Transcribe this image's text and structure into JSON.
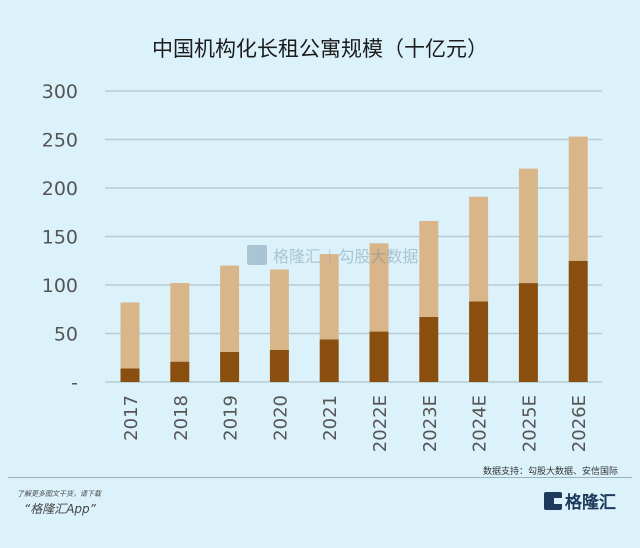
{
  "chart_data": {
    "type": "bar",
    "stacked": true,
    "title": "中国机构化长租公寓规模（十亿元）",
    "xlabel": "",
    "ylabel": "",
    "ylim": [
      0,
      300
    ],
    "yticks": [
      "-",
      "50",
      "100",
      "150",
      "200",
      "250",
      "300"
    ],
    "grid": true,
    "categories": [
      "2017",
      "2018",
      "2019",
      "2020",
      "2021",
      "2022E",
      "2023E",
      "2024E",
      "2025E",
      "2026E"
    ],
    "series": [
      {
        "values": [
          14,
          21,
          31,
          33,
          44,
          52,
          67,
          83,
          102,
          125
        ],
        "color": "#8a4f0e"
      },
      {
        "values": [
          68,
          81,
          89,
          83,
          88,
          91,
          99,
          108,
          118,
          128
        ],
        "color": "#d9b58a"
      }
    ]
  },
  "source": "数据支持：勾股大数据、安信国际",
  "footer": {
    "promo_line1": "了解更多图文干货，请下载",
    "promo_line2": "“格隆汇App”",
    "logo_text": "格隆汇"
  },
  "watermark": {
    "brand": "格隆汇",
    "partner": "勾股大数据"
  },
  "colors": {
    "background": "#dcf2fb",
    "grid": "#b5ccd6"
  }
}
